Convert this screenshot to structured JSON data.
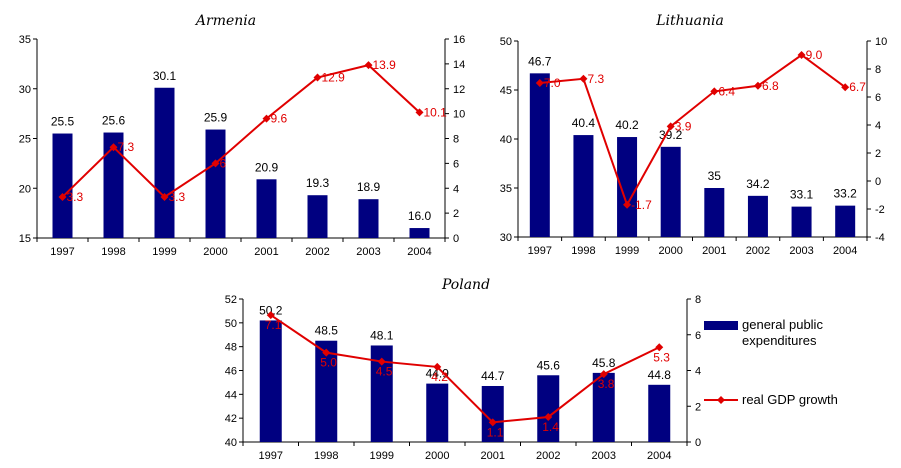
{
  "chart_data": [
    {
      "type": "bar",
      "title": "Armenia",
      "categories": [
        "1997",
        "1998",
        "1999",
        "2000",
        "2001",
        "2002",
        "2003",
        "2004"
      ],
      "series": [
        {
          "name": "general public expenditures",
          "axis": "left",
          "values": [
            25.5,
            25.6,
            30.1,
            25.9,
            20.9,
            19.3,
            18.9,
            16.0
          ],
          "labels": [
            "25.5",
            "25.6",
            "30.1",
            "25.9",
            "20.9",
            "19.3",
            "18.9",
            "16.0"
          ]
        },
        {
          "name": "real GDP growth",
          "axis": "right",
          "kind": "line",
          "values": [
            3.3,
            7.3,
            3.3,
            6,
            9.6,
            12.9,
            13.9,
            10.1
          ],
          "labels": [
            "3.3",
            "7.3",
            "3.3",
            "6",
            "9.6",
            "12.9",
            "13.9",
            "10.1"
          ]
        }
      ],
      "ylim_left": [
        15,
        35
      ],
      "yticks_left": [
        15,
        20,
        25,
        30,
        35
      ],
      "ylim_right": [
        0,
        16
      ],
      "yticks_right": [
        0,
        2,
        4,
        6,
        8,
        10,
        12,
        14,
        16
      ]
    },
    {
      "type": "bar",
      "title": "Lithuania",
      "categories": [
        "1997",
        "1998",
        "1999",
        "2000",
        "2001",
        "2002",
        "2003",
        "2004"
      ],
      "series": [
        {
          "name": "general public expenditures",
          "axis": "left",
          "values": [
            46.7,
            40.4,
            40.2,
            39.2,
            35,
            34.2,
            33.1,
            33.2
          ],
          "labels": [
            "46.7",
            "40.4",
            "40.2",
            "39.2",
            "35",
            "34.2",
            "33.1",
            "33.2"
          ]
        },
        {
          "name": "real GDP growth",
          "axis": "right",
          "kind": "line",
          "values": [
            7.0,
            7.3,
            -1.7,
            3.9,
            6.4,
            6.8,
            9.0,
            6.7
          ],
          "labels": [
            "7.0",
            "7.3",
            "-1.7",
            "3.9",
            "6.4",
            "6.8",
            "9.0",
            "6.7"
          ]
        }
      ],
      "ylim_left": [
        30,
        50
      ],
      "yticks_left": [
        30,
        35,
        40,
        45,
        50
      ],
      "ylim_right": [
        -4,
        10
      ],
      "yticks_right": [
        -4,
        -2,
        0,
        2,
        4,
        6,
        8,
        10
      ]
    },
    {
      "type": "bar",
      "title": "Poland",
      "categories": [
        "1997",
        "1998",
        "1999",
        "2000",
        "2001",
        "2002",
        "2003",
        "2004"
      ],
      "series": [
        {
          "name": "general public expenditures",
          "axis": "left",
          "values": [
            50.2,
            48.5,
            48.1,
            44.9,
            44.7,
            45.6,
            45.8,
            44.8
          ],
          "labels": [
            "50.2",
            "48.5",
            "48.1",
            "44.9",
            "44.7",
            "45.6",
            "45.8",
            "44.8"
          ]
        },
        {
          "name": "real GDP growth",
          "axis": "right",
          "kind": "line",
          "values": [
            7.1,
            5.0,
            4.5,
            4.2,
            1.1,
            1.4,
            3.8,
            5.3
          ],
          "labels": [
            "7.1",
            "5.0",
            "4.5",
            "4.2",
            "1.1",
            "1.4",
            "3.8",
            "5.3"
          ]
        }
      ],
      "ylim_left": [
        40,
        52
      ],
      "yticks_left": [
        40,
        42,
        44,
        46,
        48,
        50,
        52
      ],
      "ylim_right": [
        0,
        8
      ],
      "yticks_right": [
        0,
        2,
        4,
        6,
        8
      ]
    }
  ],
  "legend": {
    "bar_label": "general public\nexpenditures",
    "line_label": "real GDP growth",
    "placement": "right of Poland chart"
  },
  "colors": {
    "bar": "#000080",
    "line": "#e00000",
    "axis": "#000000"
  }
}
